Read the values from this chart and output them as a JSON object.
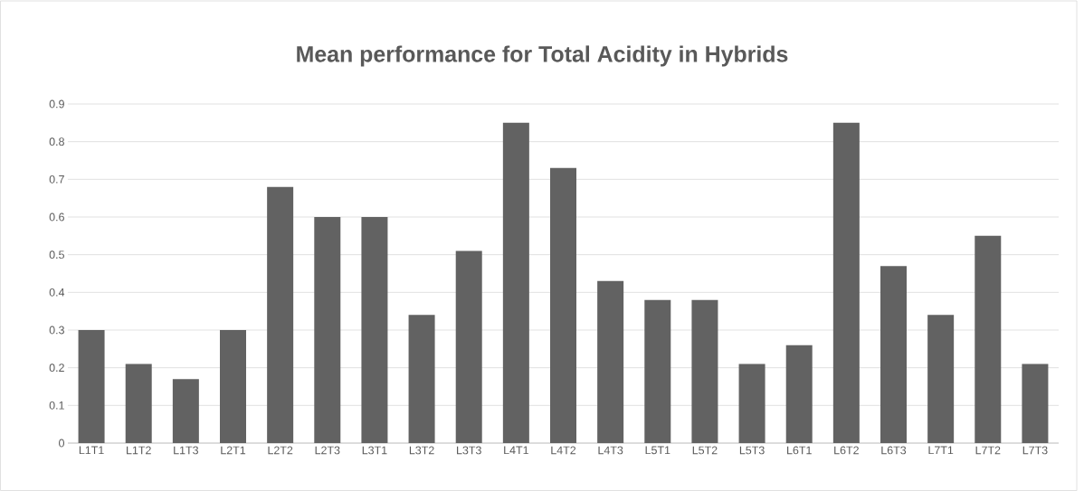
{
  "chart_data": {
    "type": "bar",
    "title": "Mean performance for Total Acidity in Hybrids",
    "categories": [
      "L1T1",
      "L1T2",
      "L1T3",
      "L2T1",
      "L2T2",
      "L2T3",
      "L3T1",
      "L3T2",
      "L3T3",
      "L4T1",
      "L4T2",
      "L4T3",
      "L5T1",
      "L5T2",
      "L5T3",
      "L6T1",
      "L6T2",
      "L6T3",
      "L7T1",
      "L7T2",
      "L7T3"
    ],
    "values": [
      0.3,
      0.21,
      0.17,
      0.3,
      0.68,
      0.6,
      0.6,
      0.34,
      0.51,
      0.85,
      0.73,
      0.43,
      0.38,
      0.38,
      0.21,
      0.26,
      0.85,
      0.47,
      0.34,
      0.55,
      0.21
    ],
    "color": "#626262",
    "ylim": [
      0,
      0.9
    ],
    "yticks": [
      0,
      0.1,
      0.2,
      0.3,
      0.4,
      0.5,
      0.6,
      0.7,
      0.8,
      0.9
    ],
    "grid": "y"
  }
}
